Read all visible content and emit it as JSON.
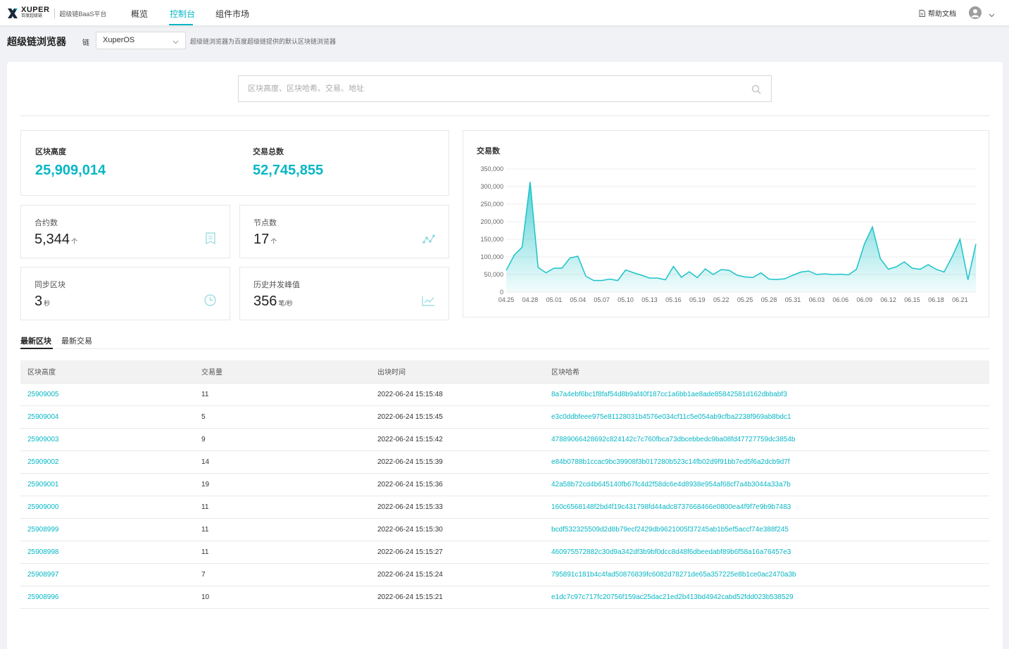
{
  "brand": {
    "name": "XUPER",
    "sub": "百度超级链",
    "platform": "超级链BaaS平台"
  },
  "nav": [
    {
      "label": "概览",
      "active": false
    },
    {
      "label": "控制台",
      "active": true
    },
    {
      "label": "组件市场",
      "active": false
    }
  ],
  "topright": {
    "help": "帮助文档",
    "avatar_icon": "user-avatar-icon"
  },
  "subheader": {
    "title": "超级链浏览器",
    "chain_label": "链",
    "chain_value": "XuperOS",
    "description": "超级链浏览器为百度超级链提供的默认区块链浏览器"
  },
  "search": {
    "placeholder": "区块高度、区块哈希、交易、地址"
  },
  "stats": {
    "block_height": {
      "label": "区块高度",
      "value": "25,909,014"
    },
    "tx_total": {
      "label": "交易总数",
      "value": "52,745,855"
    },
    "contracts": {
      "label": "合约数",
      "value": "5,344",
      "unit": "个"
    },
    "nodes": {
      "label": "节点数",
      "value": "17",
      "unit": "个"
    },
    "sync_block": {
      "label": "同步区块",
      "value": "3",
      "unit": "秒"
    },
    "peak_tps": {
      "label": "历史并发峰值",
      "value": "356",
      "unit": "笔/秒"
    }
  },
  "chart_data": {
    "type": "area",
    "title": "交易数",
    "ylim": [
      0,
      350000
    ],
    "yticks": [
      "0",
      "50,000",
      "100,000",
      "150,000",
      "200,000",
      "250,000",
      "300,000",
      "350,000"
    ],
    "xticks": [
      "04.25",
      "04.28",
      "05.01",
      "05.04",
      "05.07",
      "05.10",
      "05.13",
      "05.16",
      "05.19",
      "05.22",
      "05.25",
      "05.28",
      "05.31",
      "06.03",
      "06.06",
      "06.09",
      "06.12",
      "06.15",
      "06.18",
      "06.21"
    ],
    "x": [
      "04.25",
      "04.26",
      "04.27",
      "04.28",
      "04.29",
      "04.30",
      "05.01",
      "05.02",
      "05.03",
      "05.04",
      "05.05",
      "05.06",
      "05.07",
      "05.08",
      "05.09",
      "05.10",
      "05.11",
      "05.12",
      "05.13",
      "05.14",
      "05.15",
      "05.16",
      "05.17",
      "05.18",
      "05.19",
      "05.20",
      "05.21",
      "05.22",
      "05.23",
      "05.24",
      "05.25",
      "05.26",
      "05.27",
      "05.28",
      "05.29",
      "05.30",
      "05.31",
      "06.01",
      "06.02",
      "06.03",
      "06.04",
      "06.05",
      "06.06",
      "06.07",
      "06.08",
      "06.09",
      "06.10",
      "06.11",
      "06.12",
      "06.13",
      "06.14",
      "06.15",
      "06.16",
      "06.17",
      "06.18",
      "06.19",
      "06.20",
      "06.21",
      "06.22",
      "06.23"
    ],
    "values": [
      62000,
      105000,
      128000,
      313000,
      70000,
      55000,
      68000,
      68000,
      97000,
      102000,
      45000,
      33000,
      33000,
      37000,
      33000,
      63000,
      55000,
      48000,
      40000,
      40000,
      35000,
      73000,
      42000,
      58000,
      41000,
      66000,
      50000,
      64000,
      62000,
      48000,
      43000,
      42000,
      55000,
      37000,
      36000,
      38000,
      48000,
      57000,
      60000,
      50000,
      52000,
      50000,
      51000,
      49000,
      65000,
      137000,
      185000,
      95000,
      65000,
      72000,
      86000,
      68000,
      65000,
      78000,
      65000,
      57000,
      100000,
      150000,
      35000,
      137000
    ],
    "color": "#1bc3c8",
    "grid": true
  },
  "tabs": [
    {
      "label": "最新区块",
      "active": true
    },
    {
      "label": "最新交易",
      "active": false
    }
  ],
  "table": {
    "headers": [
      "区块高度",
      "交易量",
      "出块时间",
      "区块哈希"
    ],
    "rows": [
      [
        "25909005",
        "11",
        "2022-06-24 15:15:48",
        "8a7a4ebf6bc1f8faf54d8b9af40f187cc1a6bb1ae8ade85842581d162dbbabf3"
      ],
      [
        "25909004",
        "5",
        "2022-06-24 15:15:45",
        "e3c0ddbfeee975e81128031b4576e034cf11c5e054ab9cfba2238f969ab8bdc1"
      ],
      [
        "25909003",
        "9",
        "2022-06-24 15:15:42",
        "47889066428692c824142c7c760fbca73dbcebbedc9ba08fd47727759dc3854b"
      ],
      [
        "25909002",
        "14",
        "2022-06-24 15:15:39",
        "e84b0788b1ccac9bc39908f3b017280b523c14fb02d9f91bb7ed5f6a2dcb9d7f"
      ],
      [
        "25909001",
        "19",
        "2022-06-24 15:15:36",
        "42a58b72cd4b645140fb67fc4d2f58dc6e4d8938e954af68cf7a4b3044a33a7b"
      ],
      [
        "25909000",
        "11",
        "2022-06-24 15:15:33",
        "160c6568148f2bd4f19c431798fd44adc8737668466e0800ea4f9f7e9b9b7483"
      ],
      [
        "25908999",
        "11",
        "2022-06-24 15:15:30",
        "bcdf532325509d2d8b79ecf2429db9621005f37245ab1b5ef5accf74e388f245"
      ],
      [
        "25908998",
        "11",
        "2022-06-24 15:15:27",
        "460975572882c30d9a342df3b9bf0dcc8d48f6dbeedabf89b6f58a16a76457e3"
      ],
      [
        "25908997",
        "7",
        "2022-06-24 15:15:24",
        "795891c181b4c4fad50876839fc6082d78271de65a357225e8b1ce0ac2470a3b"
      ],
      [
        "25908996",
        "10",
        "2022-06-24 15:15:21",
        "e1dc7c97c717fc20756f159ac25dac21ed2b413bd4942cabd52fdd023b538529"
      ]
    ]
  }
}
